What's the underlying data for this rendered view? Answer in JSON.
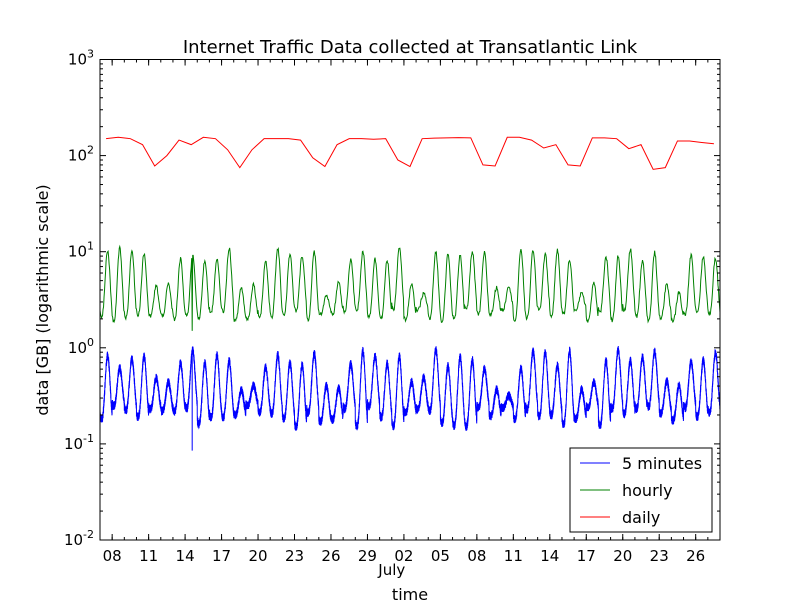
{
  "chart_data": {
    "type": "line",
    "title": "Internet Traffic Data collected at Transatlantic Link",
    "xlabel": "time",
    "ylabel": "data [GB]  (logarithmic scale)",
    "y_scale": "log",
    "ylim": [
      0.01,
      1000
    ],
    "y_ticks": [
      {
        "value": 0.01,
        "base": "10",
        "exp": "-2"
      },
      {
        "value": 0.1,
        "base": "10",
        "exp": "-1"
      },
      {
        "value": 1,
        "base": "10",
        "exp": "0"
      },
      {
        "value": 10,
        "base": "10",
        "exp": "1"
      },
      {
        "value": 100,
        "base": "10",
        "exp": "2"
      },
      {
        "value": 1000,
        "base": "10",
        "exp": "3"
      }
    ],
    "xlim": [
      "2005-06-07",
      "2005-07-28"
    ],
    "x_ticks": [
      {
        "date": "2005-06-08",
        "label": "08"
      },
      {
        "date": "2005-06-11",
        "label": "11"
      },
      {
        "date": "2005-06-14",
        "label": "14"
      },
      {
        "date": "2005-06-17",
        "label": "17"
      },
      {
        "date": "2005-06-20",
        "label": "20"
      },
      {
        "date": "2005-06-23",
        "label": "23"
      },
      {
        "date": "2005-06-26",
        "label": "26"
      },
      {
        "date": "2005-06-29",
        "label": "29"
      },
      {
        "date": "2005-07-02",
        "label": "02"
      },
      {
        "date": "2005-07-05",
        "label": "05"
      },
      {
        "date": "2005-07-08",
        "label": "08"
      },
      {
        "date": "2005-07-11",
        "label": "11"
      },
      {
        "date": "2005-07-14",
        "label": "14"
      },
      {
        "date": "2005-07-17",
        "label": "17"
      },
      {
        "date": "2005-07-20",
        "label": "20"
      },
      {
        "date": "2005-07-23",
        "label": "23"
      },
      {
        "date": "2005-07-26",
        "label": "26"
      }
    ],
    "month_label": {
      "date": "2005-07-01",
      "text": "July"
    },
    "grid": false,
    "legend_position": "bottom-right",
    "series": [
      {
        "name": "5 minutes",
        "color": "#0000ff",
        "resolution": "5 minutes",
        "x_range": [
          "2005-06-07",
          "2005-07-28"
        ],
        "daily_peak_range": [
          0.6,
          0.95
        ],
        "nightly_trough_range": [
          0.15,
          0.25
        ],
        "weekend_peak_range": [
          0.3,
          0.5
        ],
        "minimum": {
          "date": "2005-06-14",
          "value": 0.085
        }
      },
      {
        "name": "hourly",
        "color": "#008000",
        "resolution": "1 hour",
        "x_range": [
          "2005-06-07",
          "2005-07-28"
        ],
        "daily_peak_range": [
          8,
          11
        ],
        "nightly_trough_range": [
          1.9,
          2.5
        ],
        "weekend_peak_range": [
          3.5,
          5
        ],
        "minimum": {
          "date": "2005-06-14",
          "value": 1.5
        }
      },
      {
        "name": "daily",
        "color": "#ff0000",
        "x": [
          "2005-06-07",
          "2005-06-08",
          "2005-06-09",
          "2005-06-10",
          "2005-06-11",
          "2005-06-12",
          "2005-06-13",
          "2005-06-14",
          "2005-06-15",
          "2005-06-16",
          "2005-06-17",
          "2005-06-18",
          "2005-06-19",
          "2005-06-20",
          "2005-06-21",
          "2005-06-22",
          "2005-06-23",
          "2005-06-24",
          "2005-06-25",
          "2005-06-26",
          "2005-06-27",
          "2005-06-28",
          "2005-06-29",
          "2005-06-30",
          "2005-07-01",
          "2005-07-02",
          "2005-07-03",
          "2005-07-04",
          "2005-07-05",
          "2005-07-06",
          "2005-07-07",
          "2005-07-08",
          "2005-07-09",
          "2005-07-10",
          "2005-07-11",
          "2005-07-12",
          "2005-07-13",
          "2005-07-14",
          "2005-07-15",
          "2005-07-16",
          "2005-07-17",
          "2005-07-18",
          "2005-07-19",
          "2005-07-20",
          "2005-07-21",
          "2005-07-22",
          "2005-07-23",
          "2005-07-24",
          "2005-07-25",
          "2005-07-26",
          "2005-07-27"
        ],
        "values": [
          150,
          155,
          150,
          130,
          78,
          100,
          145,
          130,
          155,
          150,
          115,
          75,
          115,
          150,
          150,
          150,
          145,
          95,
          77,
          130,
          150,
          150,
          148,
          150,
          90,
          77,
          150,
          152,
          153,
          154,
          153,
          80,
          78,
          155,
          155,
          145,
          120,
          130,
          80,
          78,
          153,
          153,
          150,
          118,
          130,
          72,
          75,
          142,
          142,
          137,
          133
        ]
      }
    ]
  }
}
